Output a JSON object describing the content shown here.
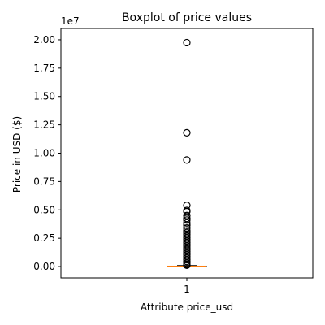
{
  "chart_data": {
    "type": "box",
    "title": "Boxplot of price values",
    "xlabel": "Attribute price_usd",
    "ylabel": "Price in USD ($)",
    "y_offset_label": "1e7",
    "ylim": [
      -1000000,
      21000000
    ],
    "yticks": [
      0,
      2500000,
      5000000,
      7500000,
      10000000,
      12500000,
      15000000,
      17500000,
      20000000
    ],
    "ytick_labels": [
      "0.00",
      "0.25",
      "0.50",
      "0.75",
      "1.00",
      "1.25",
      "1.50",
      "1.75",
      "2.00"
    ],
    "categories": [
      "1"
    ],
    "box": {
      "median": 20000,
      "q1": 5000,
      "q3": 40000,
      "whisker_low": 0,
      "whisker_high": 90000
    },
    "outliers": [
      19750000,
      11800000,
      9400000,
      5400000,
      4950000,
      4850000,
      4500000,
      4250000,
      4100000,
      3850000,
      3650000,
      3400000,
      3150000,
      3000000,
      2850000,
      2700000,
      2550000,
      2400000,
      2250000,
      2100000,
      1950000,
      1800000,
      1650000,
      1500000,
      1350000,
      1200000,
      1050000,
      900000,
      750000,
      600000,
      450000,
      300000,
      180000,
      120000
    ],
    "grid": false,
    "colors": {
      "median": "#ff7f0e",
      "box": "#000000",
      "outlier": "#000000"
    }
  }
}
